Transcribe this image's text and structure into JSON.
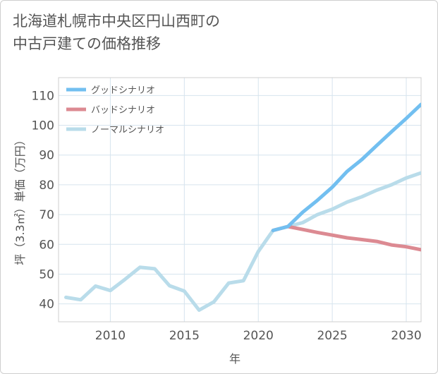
{
  "chart_data": {
    "type": "line",
    "title": "北海道札幌市中央区円山西町の\n中古戸建ての価格推移",
    "xlabel": "年",
    "ylabel": "坪（3.3㎡）単価（万円）",
    "xlim": [
      2006.5,
      2031
    ],
    "ylim": [
      34,
      116
    ],
    "xticks": [
      2010,
      2015,
      2020,
      2025,
      2030
    ],
    "yticks": [
      40,
      50,
      60,
      70,
      80,
      90,
      100,
      110
    ],
    "grid": true,
    "legend_position": "top-left",
    "series": [
      {
        "name": "グッドシナリオ",
        "color": "#72bff0",
        "x": [
          2021,
          2022,
          2023,
          2024,
          2025,
          2026,
          2027,
          2028,
          2029,
          2030,
          2031
        ],
        "y": [
          64.7,
          66.0,
          70.8,
          74.8,
          79.2,
          84.5,
          88.5,
          93.2,
          97.8,
          102.3,
          107.0
        ]
      },
      {
        "name": "バッドシナリオ",
        "color": "#dc8a92",
        "x": [
          2021,
          2022,
          2023,
          2024,
          2025,
          2026,
          2027,
          2028,
          2029,
          2030,
          2031
        ],
        "y": [
          64.7,
          66.0,
          65.0,
          64.0,
          63.1,
          62.2,
          61.6,
          61.0,
          59.8,
          59.2,
          58.2
        ]
      },
      {
        "name": "ノーマルシナリオ",
        "color": "#b9dcea",
        "x": [
          2007,
          2008,
          2009,
          2010,
          2011,
          2012,
          2013,
          2014,
          2015,
          2016,
          2017,
          2018,
          2019,
          2020,
          2021,
          2022,
          2023,
          2024,
          2025,
          2026,
          2027,
          2028,
          2029,
          2030,
          2031
        ],
        "y": [
          42.2,
          41.4,
          46.0,
          44.5,
          48.3,
          52.3,
          51.8,
          46.1,
          44.3,
          37.9,
          40.7,
          47.0,
          47.8,
          57.6,
          64.7,
          66.0,
          67.3,
          70.0,
          71.8,
          74.2,
          76.0,
          78.2,
          80.0,
          82.3,
          84.0
        ]
      }
    ]
  }
}
